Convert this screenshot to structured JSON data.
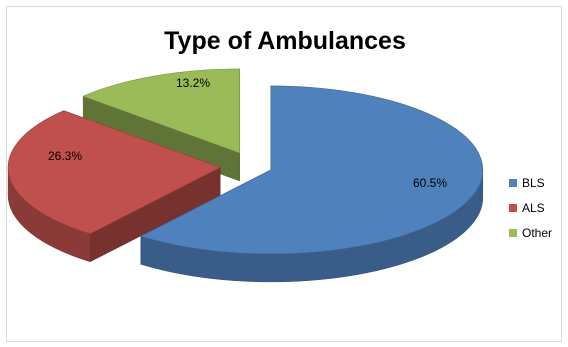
{
  "chart_data": {
    "type": "pie",
    "title": "Type of Ambulances",
    "slices": [
      {
        "name": "BLS",
        "value": 60.5,
        "label": "60.5%",
        "color": "#4f81bd"
      },
      {
        "name": "ALS",
        "value": 26.3,
        "label": "26.3%",
        "color": "#c0504d"
      },
      {
        "name": "Other",
        "value": 13.2,
        "label": "13.2%",
        "color": "#9bbb59"
      }
    ],
    "legend": {
      "position": "right"
    },
    "exploded": true,
    "style": "3d"
  }
}
